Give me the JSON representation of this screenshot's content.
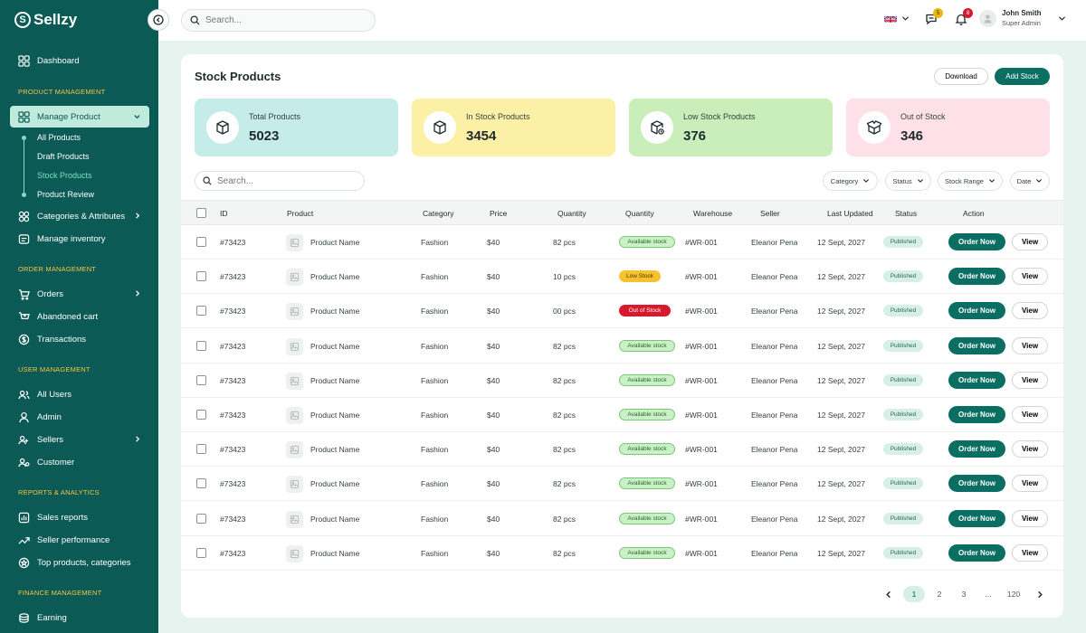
{
  "brand": {
    "name": "Sellzy",
    "mark": "S"
  },
  "sidebar": {
    "dashboard": "Dashboard",
    "sections": {
      "product": "PRODUCT MANAGEMENT",
      "order": "ORDER MANAGEMENT",
      "user": "USER MANAGEMENT",
      "reports": "REPORTS & ANALYTICS",
      "finance": "FINANCE MANAGEMENT"
    },
    "manage_product": "Manage Product",
    "sub_items": [
      "All Products",
      "Draft Products",
      "Stock Products",
      "Product Review"
    ],
    "categories": "Categories & Attributes",
    "inventory": "Manage inventory",
    "orders": "Orders",
    "abandoned": "Abandoned cart",
    "transactions": "Transactions",
    "all_users": "All Users",
    "admin": "Admin",
    "sellers": "Sellers",
    "customer": "Customer",
    "sales_reports": "Sales reports",
    "seller_performance": "Seller performance",
    "top_products": "Top products, categories",
    "earning": "Earning"
  },
  "topbar": {
    "search_placeholder": "Search...",
    "messages_count": "5",
    "notifications_count": "8",
    "user_name": "John Smith",
    "user_role": "Super Admin"
  },
  "page": {
    "title": "Stock Products",
    "download_label": "Download",
    "add_label": "Add Stock"
  },
  "stats": [
    {
      "label": "Total Products",
      "value": "5023",
      "color": "#c5ece9"
    },
    {
      "label": "In Stock Products",
      "value": "3454",
      "color": "#fbf0a6"
    },
    {
      "label": "Low Stock Products",
      "value": "376",
      "color": "#c9eeba"
    },
    {
      "label": "Out of Stock",
      "value": "346",
      "color": "#fde0e8"
    }
  ],
  "table": {
    "search_placeholder": "Search...",
    "filters": [
      "Category",
      "Status",
      "Stock Range",
      "Date"
    ],
    "headers": [
      "ID",
      "Product",
      "Category",
      "Price",
      "Quantity",
      "Quantity",
      "Warehouse",
      "Seller",
      "Last Updated",
      "Status",
      "Action"
    ],
    "order_label": "Order Now",
    "view_label": "View",
    "rows": [
      {
        "id": "#73423",
        "product": "Product Name",
        "category": "Fashion",
        "price": "$40",
        "qty": "82 pcs",
        "stock": "Available stock",
        "stock_type": "available",
        "warehouse": "#WR-001",
        "seller": "Eleanor Pena",
        "updated": "12 Sept, 2027",
        "status": "Published"
      },
      {
        "id": "#73423",
        "product": "Product Name",
        "category": "Fashion",
        "price": "$40",
        "qty": "10 pcs",
        "stock": "Low Stock",
        "stock_type": "low",
        "warehouse": "#WR-001",
        "seller": "Eleanor Pena",
        "updated": "12 Sept, 2027",
        "status": "Published"
      },
      {
        "id": "#73423",
        "product": "Product Name",
        "category": "Fashion",
        "price": "$40",
        "qty": "00 pcs",
        "stock": "Out of Stock",
        "stock_type": "out",
        "warehouse": "#WR-001",
        "seller": "Eleanor Pena",
        "updated": "12 Sept, 2027",
        "status": "Published"
      },
      {
        "id": "#73423",
        "product": "Product Name",
        "category": "Fashion",
        "price": "$40",
        "qty": "82 pcs",
        "stock": "Available stock",
        "stock_type": "available",
        "warehouse": "#WR-001",
        "seller": "Eleanor Pena",
        "updated": "12 Sept, 2027",
        "status": "Published"
      },
      {
        "id": "#73423",
        "product": "Product Name",
        "category": "Fashion",
        "price": "$40",
        "qty": "82 pcs",
        "stock": "Available stock",
        "stock_type": "available",
        "warehouse": "#WR-001",
        "seller": "Eleanor Pena",
        "updated": "12 Sept, 2027",
        "status": "Published"
      },
      {
        "id": "#73423",
        "product": "Product Name",
        "category": "Fashion",
        "price": "$40",
        "qty": "82 pcs",
        "stock": "Available stock",
        "stock_type": "available",
        "warehouse": "#WR-001",
        "seller": "Eleanor Pena",
        "updated": "12 Sept, 2027",
        "status": "Published"
      },
      {
        "id": "#73423",
        "product": "Product Name",
        "category": "Fashion",
        "price": "$40",
        "qty": "82 pcs",
        "stock": "Available stock",
        "stock_type": "available",
        "warehouse": "#WR-001",
        "seller": "Eleanor Pena",
        "updated": "12 Sept, 2027",
        "status": "Published"
      },
      {
        "id": "#73423",
        "product": "Product Name",
        "category": "Fashion",
        "price": "$40",
        "qty": "82 pcs",
        "stock": "Available stock",
        "stock_type": "available",
        "warehouse": "#WR-001",
        "seller": "Eleanor Pena",
        "updated": "12 Sept, 2027",
        "status": "Published"
      },
      {
        "id": "#73423",
        "product": "Product Name",
        "category": "Fashion",
        "price": "$40",
        "qty": "82 pcs",
        "stock": "Available stock",
        "stock_type": "available",
        "warehouse": "#WR-001",
        "seller": "Eleanor Pena",
        "updated": "12 Sept, 2027",
        "status": "Published"
      },
      {
        "id": "#73423",
        "product": "Product Name",
        "category": "Fashion",
        "price": "$40",
        "qty": "82 pcs",
        "stock": "Available stock",
        "stock_type": "available",
        "warehouse": "#WR-001",
        "seller": "Eleanor Pena",
        "updated": "12 Sept, 2027",
        "status": "Published"
      }
    ]
  },
  "pagination": {
    "pages": [
      "1",
      "2",
      "3",
      "...",
      "120"
    ],
    "current": "1"
  }
}
